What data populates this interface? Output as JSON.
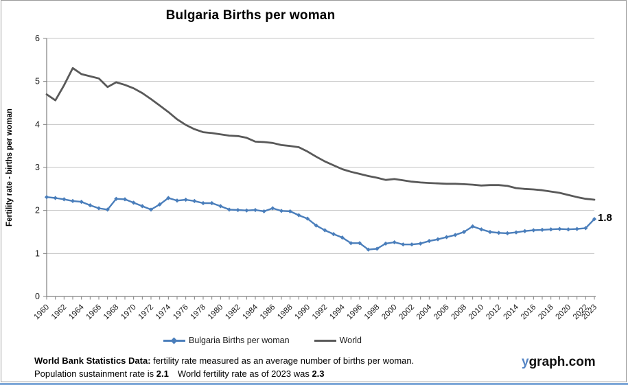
{
  "page": {
    "footer": {
      "line1_bold": "World Bank Statistics Data:",
      "line1_rest": " fertility rate measured as an average number of births per woman.",
      "line2_part1": "Population sustainment rate is ",
      "line2_bold1": "2.1",
      "line2_part2": "World fertility rate as of 2023 was ",
      "line2_bold2": "2.3"
    },
    "watermark": {
      "prefix": "y",
      "suffix": "graph.com"
    }
  },
  "chart_data": {
    "type": "line",
    "title": "Bulgaria Births per woman",
    "xlabel": "",
    "ylabel": "Fertility rate - births per woman",
    "ylim": [
      0,
      6
    ],
    "yticks": [
      0,
      1,
      2,
      3,
      4,
      5,
      6
    ],
    "grid": "horizontal",
    "legend_position": "bottom",
    "end_label": "1.8",
    "x_start": 1960,
    "x_end": 2023,
    "xtick_labels": [
      "1960",
      "1962",
      "1964",
      "1966",
      "1968",
      "1970",
      "1972",
      "1974",
      "1976",
      "1978",
      "1980",
      "1982",
      "1984",
      "1986",
      "1988",
      "1990",
      "1992",
      "1994",
      "1996",
      "1998",
      "2000",
      "2002",
      "2004",
      "2006",
      "2008",
      "2010",
      "2012",
      "2014",
      "2016",
      "2018",
      "2020",
      "2022",
      "2023"
    ],
    "colors": {
      "bulgaria": "#4a7ebb",
      "world": "#595959",
      "gridline": "#c6c6c6",
      "axis": "#808080"
    },
    "series": [
      {
        "name": "Bulgaria Births per woman",
        "color": "#4a7ebb",
        "marker": "diamond",
        "values": [
          2.31,
          2.29,
          2.26,
          2.22,
          2.2,
          2.12,
          2.05,
          2.02,
          2.27,
          2.26,
          2.18,
          2.1,
          2.02,
          2.14,
          2.29,
          2.23,
          2.25,
          2.22,
          2.17,
          2.17,
          2.1,
          2.02,
          2.01,
          2.0,
          2.01,
          1.98,
          2.05,
          1.99,
          1.98,
          1.89,
          1.81,
          1.65,
          1.54,
          1.45,
          1.37,
          1.24,
          1.24,
          1.09,
          1.11,
          1.23,
          1.26,
          1.21,
          1.21,
          1.23,
          1.29,
          1.33,
          1.38,
          1.43,
          1.5,
          1.63,
          1.56,
          1.5,
          1.48,
          1.47,
          1.49,
          1.52,
          1.54,
          1.55,
          1.56,
          1.57,
          1.56,
          1.57,
          1.59,
          1.8
        ]
      },
      {
        "name": "World",
        "color": "#595959",
        "marker": "none",
        "values": [
          4.7,
          4.56,
          4.91,
          5.31,
          5.17,
          5.12,
          5.07,
          4.87,
          4.98,
          4.92,
          4.84,
          4.73,
          4.59,
          4.44,
          4.29,
          4.12,
          3.99,
          3.89,
          3.82,
          3.8,
          3.77,
          3.74,
          3.73,
          3.69,
          3.6,
          3.59,
          3.57,
          3.52,
          3.5,
          3.47,
          3.37,
          3.25,
          3.14,
          3.05,
          2.96,
          2.9,
          2.85,
          2.8,
          2.76,
          2.71,
          2.73,
          2.7,
          2.67,
          2.65,
          2.64,
          2.63,
          2.62,
          2.62,
          2.61,
          2.6,
          2.58,
          2.59,
          2.59,
          2.57,
          2.52,
          2.5,
          2.49,
          2.47,
          2.44,
          2.41,
          2.36,
          2.31,
          2.27,
          2.25
        ]
      }
    ]
  }
}
